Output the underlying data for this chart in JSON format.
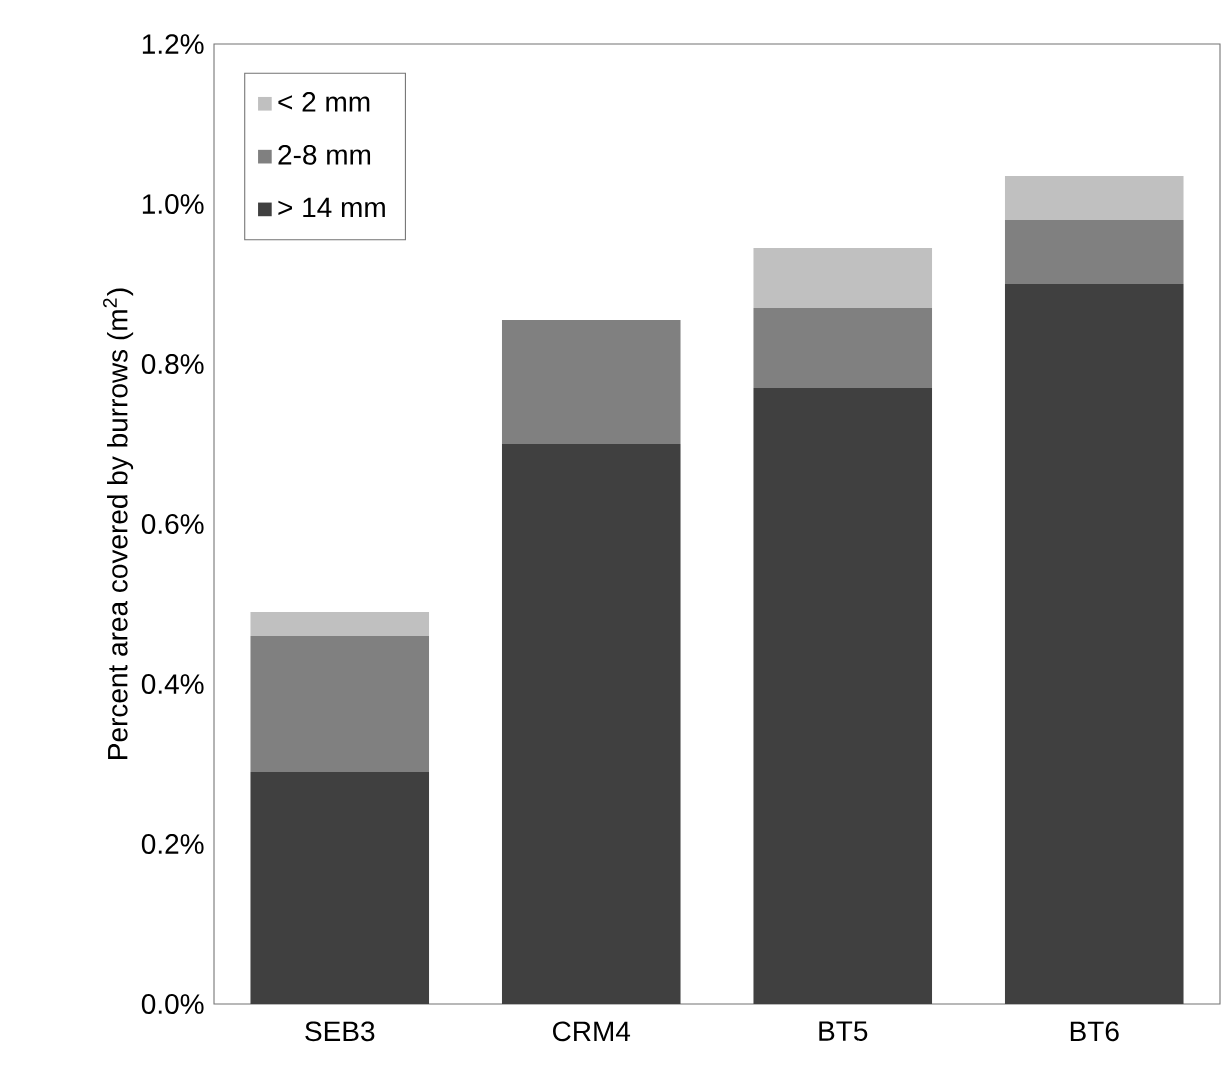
{
  "chart_data": {
    "type": "bar",
    "stacked": true,
    "ylabel": "Percent area covered by burrows (m$^{2}$)",
    "categories": [
      "SEB3",
      "CRM4",
      "BT5",
      "BT6"
    ],
    "series": [
      {
        "name": "> 14 mm",
        "color": "#404040",
        "values": [
          0.29,
          0.7,
          0.77,
          0.9
        ]
      },
      {
        "name": "2-8 mm",
        "color": "#808080",
        "values": [
          0.17,
          0.155,
          0.1,
          0.08
        ]
      },
      {
        "name": "< 2 mm",
        "color": "#c0c0c0",
        "values": [
          0.03,
          null,
          0.075,
          0.055
        ]
      }
    ],
    "ylim": [
      0,
      1.2
    ],
    "yticks": [
      {
        "value": 0,
        "label": "0.0%"
      },
      {
        "value": 0.2,
        "label": "0.2%"
      },
      {
        "value": 0.4,
        "label": "0.4%"
      },
      {
        "value": 0.6,
        "label": "0.6%"
      },
      {
        "value": 0.8,
        "label": "0.8%"
      },
      {
        "value": 1.0,
        "label": "1.0%"
      },
      {
        "value": 1.2,
        "label": "1.2%"
      }
    ],
    "grid": false,
    "legend": "top left"
  }
}
